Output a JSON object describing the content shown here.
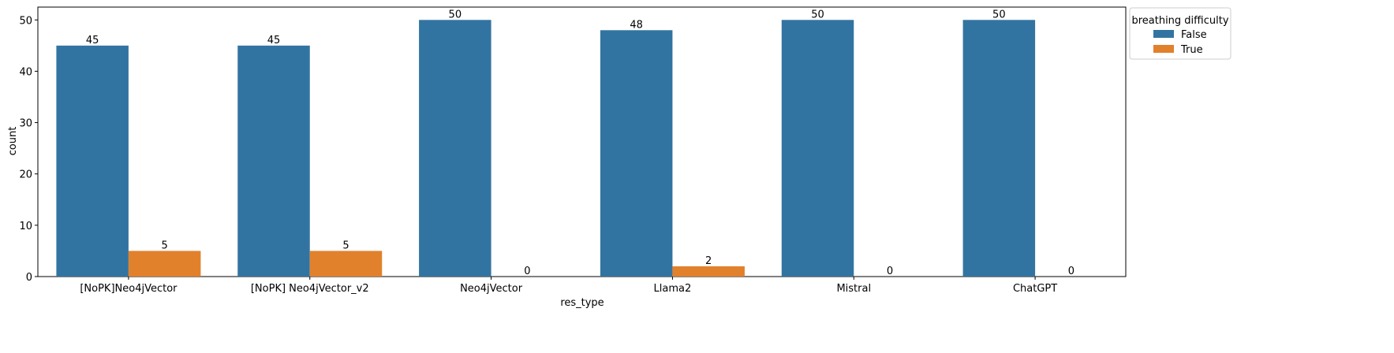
{
  "chart_data": {
    "type": "bar",
    "xlabel": "res_type",
    "ylabel": "count",
    "categories": [
      "[NoPK]Neo4jVector",
      "[NoPK] Neo4jVector_v2",
      "Neo4jVector",
      "Llama2",
      "Mistral",
      "ChatGPT"
    ],
    "series": [
      {
        "name": "False",
        "color": "#3274a1",
        "values": [
          45,
          45,
          50,
          48,
          50,
          50
        ]
      },
      {
        "name": "True",
        "color": "#e1812c",
        "values": [
          5,
          5,
          0,
          2,
          0,
          0
        ]
      }
    ],
    "ylim": [
      0,
      52.5
    ],
    "yticks": [
      0,
      10,
      20,
      30,
      40,
      50
    ],
    "grid": false,
    "legend": {
      "title": "breathing difficulty",
      "placement": "outside-top-right"
    }
  }
}
